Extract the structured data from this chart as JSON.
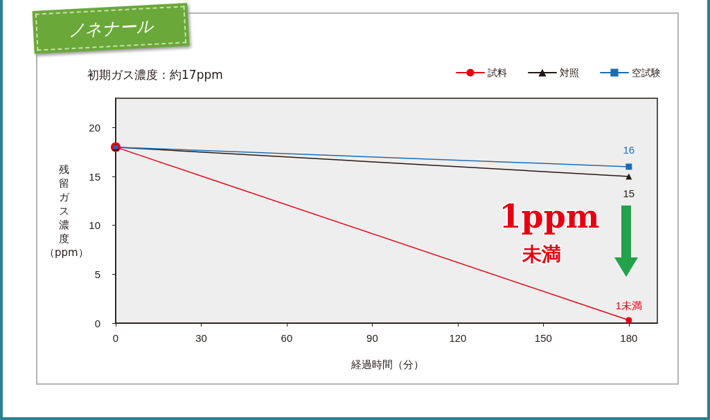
{
  "chart_data": {
    "type": "line",
    "title": "ノネナール",
    "subtitle": "初期ガス濃度：約17ppm",
    "xlabel": "経過時間（分）",
    "ylabel": "残留ガス濃度（ppm）",
    "x": [
      0,
      180
    ],
    "xlim": [
      0,
      190
    ],
    "xticks": [
      0,
      30,
      60,
      90,
      120,
      150,
      180
    ],
    "ylim": [
      0,
      23
    ],
    "yticks": [
      0,
      5,
      10,
      15,
      20
    ],
    "grid": false,
    "legend": "top right",
    "line_style": "solid",
    "series": [
      {
        "name": "試料",
        "color": "#e60012",
        "values": [
          18,
          0.3
        ],
        "marker": "circle"
      },
      {
        "name": "対照",
        "color": "#231815",
        "values": [
          18,
          15
        ],
        "marker": "triangle",
        "value_labels": [
          null,
          "15"
        ]
      },
      {
        "name": "空試験",
        "color": "#1a6db5",
        "values": [
          18,
          16
        ],
        "marker": "square",
        "value_labels": [
          null,
          "16"
        ]
      }
    ],
    "annotations": [
      "1ppm",
      "未満",
      {
        "text": "1未満",
        "x": 180,
        "y": 0.3
      }
    ]
  }
}
